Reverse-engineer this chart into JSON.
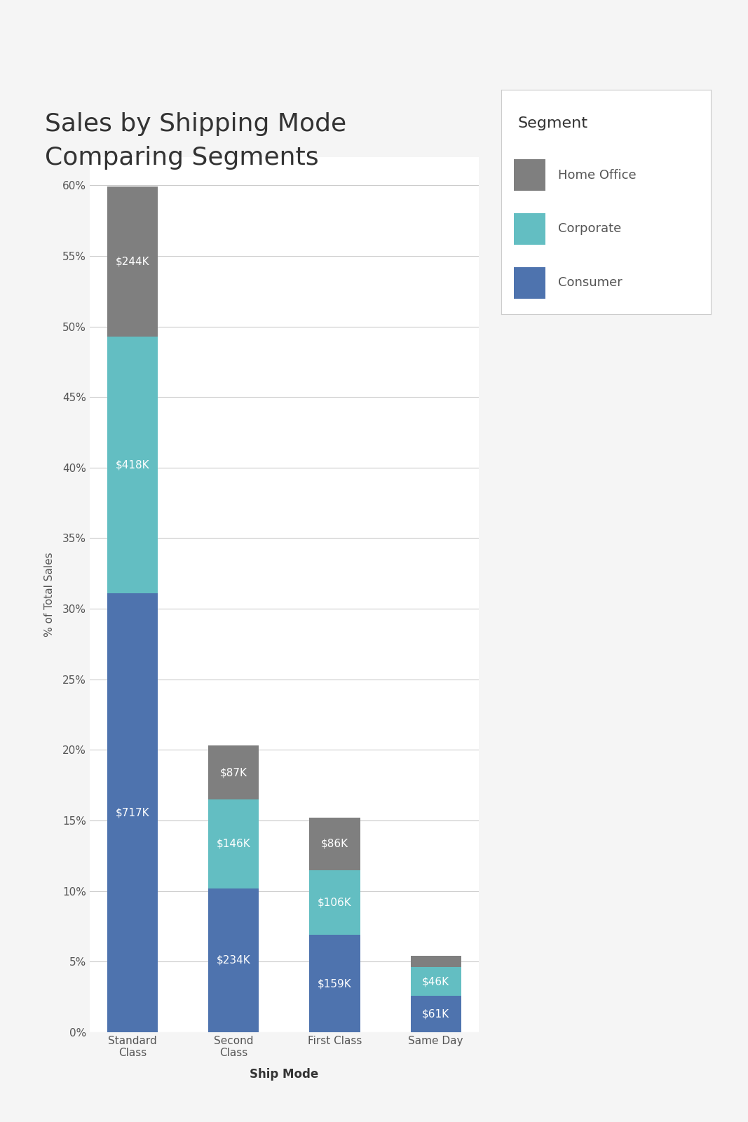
{
  "title": "Sales by Shipping Mode\nComparing Segments",
  "xlabel": "Ship Mode",
  "ylabel": "% of Total Sales",
  "categories": [
    "Standard\nClass",
    "Second\nClass",
    "First Class",
    "Same Day"
  ],
  "segments": [
    "Consumer",
    "Corporate",
    "Home Office"
  ],
  "colors": {
    "Consumer": "#4e73ae",
    "Corporate": "#63bec2",
    "Home Office": "#7f7f7f"
  },
  "values": {
    "Consumer": [
      31.1,
      10.2,
      6.9,
      2.6
    ],
    "Corporate": [
      18.2,
      6.3,
      4.6,
      2.0
    ],
    "Home Office": [
      10.6,
      3.8,
      3.7,
      0.8
    ]
  },
  "labels": {
    "Consumer": [
      "$717K",
      "$234K",
      "$159K",
      "$61K"
    ],
    "Corporate": [
      "$418K",
      "$146K",
      "$106K",
      "$46K"
    ],
    "Home Office": [
      "$244K",
      "$87K",
      "$86K",
      ""
    ]
  },
  "ylim": [
    0,
    62
  ],
  "yticks": [
    0,
    5,
    10,
    15,
    20,
    25,
    30,
    35,
    40,
    45,
    50,
    55,
    60
  ],
  "background_color": "#f5f5f5",
  "plot_bg_color": "#ffffff",
  "title_fontsize": 26,
  "axis_label_fontsize": 11,
  "tick_fontsize": 11,
  "legend_title": "Segment",
  "legend_title_fontsize": 16,
  "legend_fontsize": 13,
  "bar_label_fontsize": 11,
  "bar_width": 0.5
}
